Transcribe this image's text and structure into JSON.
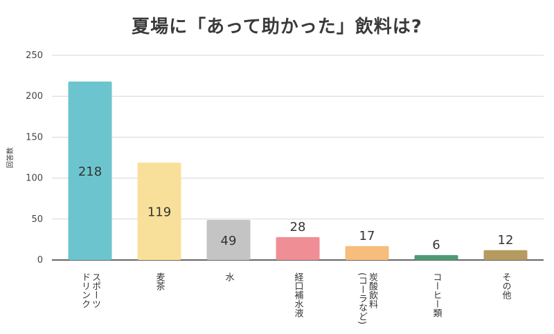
{
  "chart_data": {
    "type": "bar",
    "title": "夏場に「あって助かった」飲料は?",
    "ylabel": "回答数",
    "xlabel": "",
    "ylim": [
      0,
      250
    ],
    "yticks": [
      0,
      50,
      100,
      150,
      200,
      250
    ],
    "grid": true,
    "legend": "none",
    "categories": [
      [
        "スポーツ",
        "ドリンク"
      ],
      [
        "麦茶"
      ],
      [
        "水"
      ],
      [
        "経口補水液"
      ],
      [
        "炭酸飲料",
        "(コーラなど)"
      ],
      [
        "コーヒー類"
      ],
      [
        "その他"
      ]
    ],
    "values": [
      218,
      119,
      49,
      28,
      17,
      6,
      12
    ],
    "colors": [
      "#6cc5ce",
      "#f9e09a",
      "#c4c4c4",
      "#ef8f95",
      "#f6bd7d",
      "#4f9a74",
      "#b69b60"
    ]
  }
}
